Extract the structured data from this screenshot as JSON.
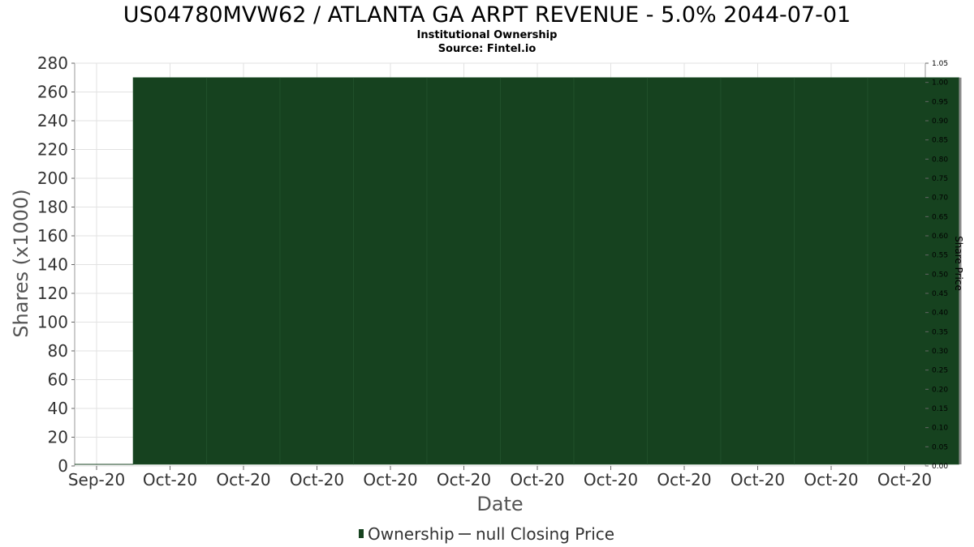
{
  "chart_data": {
    "type": "area",
    "title": "US04780MVW62 / ATLANTA GA ARPT REVENUE - 5.0% 2044-07-01",
    "subtitle": "Institutional Ownership",
    "source": "Source: Fintel.io",
    "xlabel": "Date",
    "ylabel": "Shares (x1000)",
    "y2label": "Share Price",
    "ylim": [
      0,
      280
    ],
    "y_ticks": [
      0,
      20,
      40,
      60,
      80,
      100,
      120,
      140,
      160,
      180,
      200,
      220,
      240,
      260,
      280
    ],
    "y2lim": [
      0,
      1.05
    ],
    "y2_ticks": [
      "0.00",
      "0.05",
      "0.10",
      "0.15",
      "0.20",
      "0.25",
      "0.30",
      "0.35",
      "0.40",
      "0.45",
      "0.50",
      "0.55",
      "0.60",
      "0.65",
      "0.70",
      "0.75",
      "0.80",
      "0.85",
      "0.90",
      "0.95",
      "1.00",
      "1.05"
    ],
    "x_ticks": [
      "Sep-20",
      "Oct-20",
      "Oct-20",
      "Oct-20",
      "Oct-20",
      "Oct-20",
      "Oct-20",
      "Oct-20",
      "Oct-20",
      "Oct-20",
      "Oct-20",
      "Oct-20"
    ],
    "series": [
      {
        "name": "Ownership",
        "type": "area",
        "color": "#16421f",
        "values": [
          0,
          270,
          270,
          270,
          270,
          270,
          270,
          270,
          270,
          270,
          270,
          270
        ]
      },
      {
        "name": "null Closing Price",
        "type": "line",
        "color": "#555555",
        "values": []
      }
    ],
    "grid": true,
    "legend_position": "bottom"
  }
}
